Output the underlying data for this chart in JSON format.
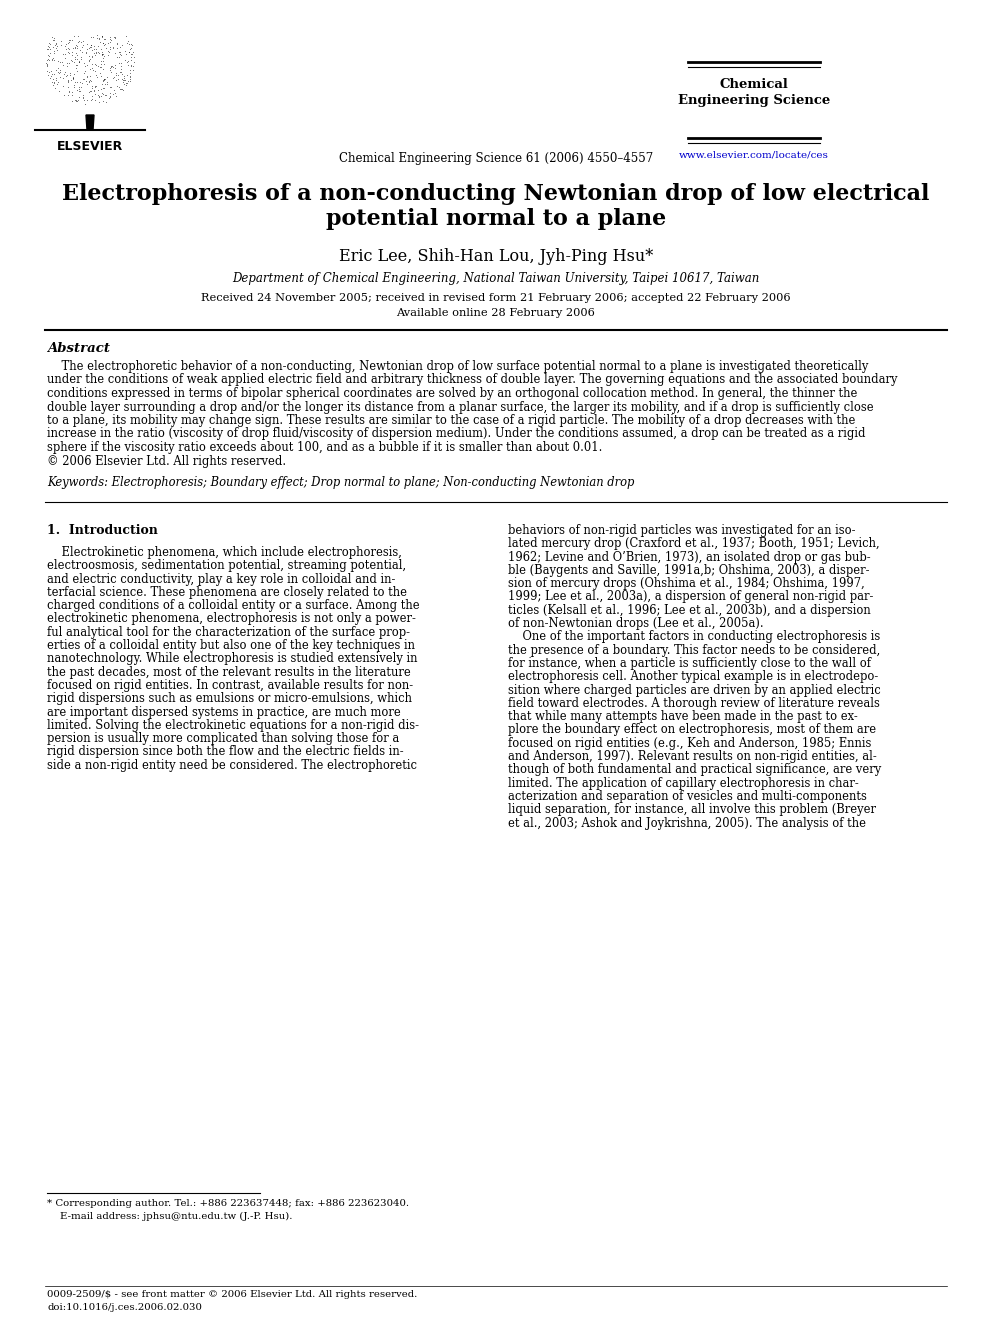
{
  "background_color": "#ffffff",
  "journal_name_line1": "Chemical",
  "journal_name_line2": "Engineering Science",
  "journal_url": "www.elsevier.com/locate/ces",
  "journal_citation": "Chemical Engineering Science 61 (2006) 4550–4557",
  "title_line1": "Electrophoresis of a non-conducting Newtonian drop of low electrical",
  "title_line2": "potential normal to a plane",
  "authors": "Eric Lee, Shih-Han Lou, Jyh-Ping Hsu*",
  "affiliation": "Department of Chemical Engineering, National Taiwan University, Taipei 10617, Taiwan",
  "received_line1": "Received 24 November 2005; received in revised form 21 February 2006; accepted 22 February 2006",
  "received_line2": "Available online 28 February 2006",
  "abstract_title": "Abstract",
  "abstract_lines": [
    "    The electrophoretic behavior of a non-conducting, Newtonian drop of low surface potential normal to a plane is investigated theoretically",
    "under the conditions of weak applied electric field and arbitrary thickness of double layer. The governing equations and the associated boundary",
    "conditions expressed in terms of bipolar spherical coordinates are solved by an orthogonal collocation method. In general, the thinner the",
    "double layer surrounding a drop and/or the longer its distance from a planar surface, the larger its mobility, and if a drop is sufficiently close",
    "to a plane, its mobility may change sign. These results are similar to the case of a rigid particle. The mobility of a drop decreases with the",
    "increase in the ratio (viscosity of drop fluid/viscosity of dispersion medium). Under the conditions assumed, a drop can be treated as a rigid",
    "sphere if the viscosity ratio exceeds about 100, and as a bubble if it is smaller than about 0.01.",
    "© 2006 Elsevier Ltd. All rights reserved."
  ],
  "keywords_line": "Keywords: Electrophoresis; Boundary effect; Drop normal to plane; Non-conducting Newtonian drop",
  "section1_title": "1.  Introduction",
  "col1_lines": [
    "    Electrokinetic phenomena, which include electrophoresis,",
    "electroosmosis, sedimentation potential, streaming potential,",
    "and electric conductivity, play a key role in colloidal and in-",
    "terfacial science. These phenomena are closely related to the",
    "charged conditions of a colloidal entity or a surface. Among the",
    "electrokinetic phenomena, electrophoresis is not only a power-",
    "ful analytical tool for the characterization of the surface prop-",
    "erties of a colloidal entity but also one of the key techniques in",
    "nanotechnology. While electrophoresis is studied extensively in",
    "the past decades, most of the relevant results in the literature",
    "focused on rigid entities. In contrast, available results for non-",
    "rigid dispersions such as emulsions or micro-emulsions, which",
    "are important dispersed systems in practice, are much more",
    "limited. Solving the electrokinetic equations for a non-rigid dis-",
    "persion is usually more complicated than solving those for a",
    "rigid dispersion since both the flow and the electric fields in-",
    "side a non-rigid entity need be considered. The electrophoretic"
  ],
  "col2_lines": [
    "behaviors of non-rigid particles was investigated for an iso-",
    "lated mercury drop (Craxford et al., 1937; Booth, 1951; Levich,",
    "1962; Levine and O’Brien, 1973), an isolated drop or gas bub-",
    "ble (Baygents and Saville, 1991a,b; Ohshima, 2003), a disper-",
    "sion of mercury drops (Ohshima et al., 1984; Ohshima, 1997,",
    "1999; Lee et al., 2003a), a dispersion of general non-rigid par-",
    "ticles (Kelsall et al., 1996; Lee et al., 2003b), and a dispersion",
    "of non-Newtonian drops (Lee et al., 2005a).",
    "    One of the important factors in conducting electrophoresis is",
    "the presence of a boundary. This factor needs to be considered,",
    "for instance, when a particle is sufficiently close to the wall of",
    "electrophoresis cell. Another typical example is in electrodepo-",
    "sition where charged particles are driven by an applied electric",
    "field toward electrodes. A thorough review of literature reveals",
    "that while many attempts have been made in the past to ex-",
    "plore the boundary effect on electrophoresis, most of them are",
    "focused on rigid entities (e.g., Keh and Anderson, 1985; Ennis",
    "and Anderson, 1997). Relevant results on non-rigid entities, al-",
    "though of both fundamental and practical significance, are very",
    "limited. The application of capillary electrophoresis in char-",
    "acterization and separation of vesicles and multi-components",
    "liquid separation, for instance, all involve this problem (Breyer",
    "et al., 2003; Ashok and Joykrishna, 2005). The analysis of the"
  ],
  "footer_note1": "* Corresponding author. Tel.: +886 223637448; fax: +886 223623040.",
  "footer_note2": "    E-mail address: jphsu@ntu.edu.tw (J.-P. Hsu).",
  "footer_copy": "0009-2509/$ - see front matter © 2006 Elsevier Ltd. All rights reserved.",
  "footer_doi": "doi:10.1016/j.ces.2006.02.030",
  "link_color": "#0000cc",
  "text_color": "#000000",
  "ref_color": "#000080"
}
